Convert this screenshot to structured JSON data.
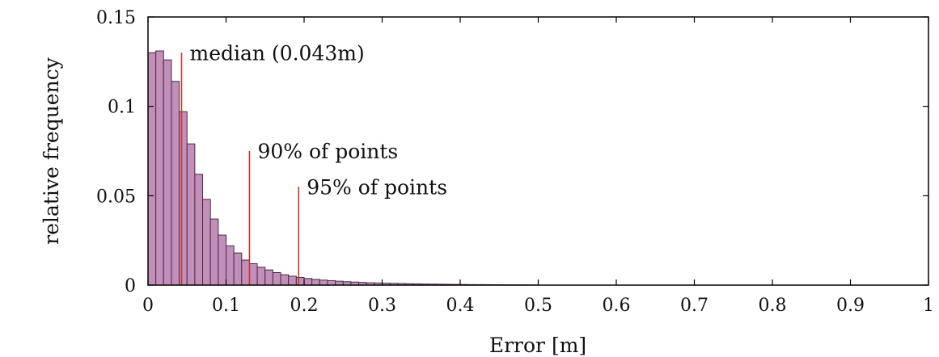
{
  "chart_data": {
    "type": "bar",
    "xlabel": "Error [m]",
    "ylabel": "relative frequency",
    "xlim": [
      0,
      1
    ],
    "ylim": [
      0,
      0.15
    ],
    "xticks": [
      "0",
      "0.1",
      "0.2",
      "0.3",
      "0.4",
      "0.5",
      "0.6",
      "0.7",
      "0.8",
      "0.9",
      "1"
    ],
    "xtick_values": [
      0,
      0.1,
      0.2,
      0.3,
      0.4,
      0.5,
      0.6,
      0.7,
      0.8,
      0.9,
      1
    ],
    "yticks": [
      "0",
      "0.05",
      "0.1",
      "0.15"
    ],
    "ytick_values": [
      0,
      0.05,
      0.1,
      0.15
    ],
    "grid": false,
    "bin_width": 0.01,
    "bin_starts": [
      0.0,
      0.01,
      0.02,
      0.03,
      0.04,
      0.05,
      0.06,
      0.07,
      0.08,
      0.09,
      0.1,
      0.11,
      0.12,
      0.13,
      0.14,
      0.15,
      0.16,
      0.17,
      0.18,
      0.19,
      0.2,
      0.21,
      0.22,
      0.23,
      0.24,
      0.25,
      0.26,
      0.27,
      0.28,
      0.29,
      0.3,
      0.31,
      0.32,
      0.33,
      0.34,
      0.35,
      0.36,
      0.37,
      0.38,
      0.39,
      0.4,
      0.41,
      0.42,
      0.43,
      0.44,
      0.45,
      0.46,
      0.47,
      0.48,
      0.49
    ],
    "values": [
      0.13,
      0.131,
      0.126,
      0.114,
      0.097,
      0.079,
      0.062,
      0.048,
      0.037,
      0.028,
      0.022,
      0.018,
      0.014,
      0.012,
      0.01,
      0.0085,
      0.007,
      0.0058,
      0.005,
      0.0043,
      0.0037,
      0.0032,
      0.0028,
      0.0025,
      0.0022,
      0.0019,
      0.0017,
      0.0015,
      0.0013,
      0.0012,
      0.0011,
      0.001,
      0.0009,
      0.0008,
      0.0007,
      0.0006,
      0.00055,
      0.0005,
      0.00045,
      0.0004,
      0.00035,
      0.0003,
      0.00028,
      0.00025,
      0.00022,
      0.0002,
      0.00018,
      0.00016,
      0.00014,
      0.00012
    ],
    "annotations": [
      {
        "label": "median (0.043m)",
        "x": 0.043,
        "y_top": 0.13,
        "color": "#d0312d"
      },
      {
        "label": "90% of points",
        "x": 0.13,
        "y_top": 0.075,
        "color": "#d0312d"
      },
      {
        "label": "95% of points",
        "x": 0.193,
        "y_top": 0.055,
        "color": "#d0312d"
      }
    ],
    "colors": {
      "bar_fill": "#c28fb8",
      "bar_edge": "#4a2a44",
      "marker": "#d0312d"
    }
  }
}
